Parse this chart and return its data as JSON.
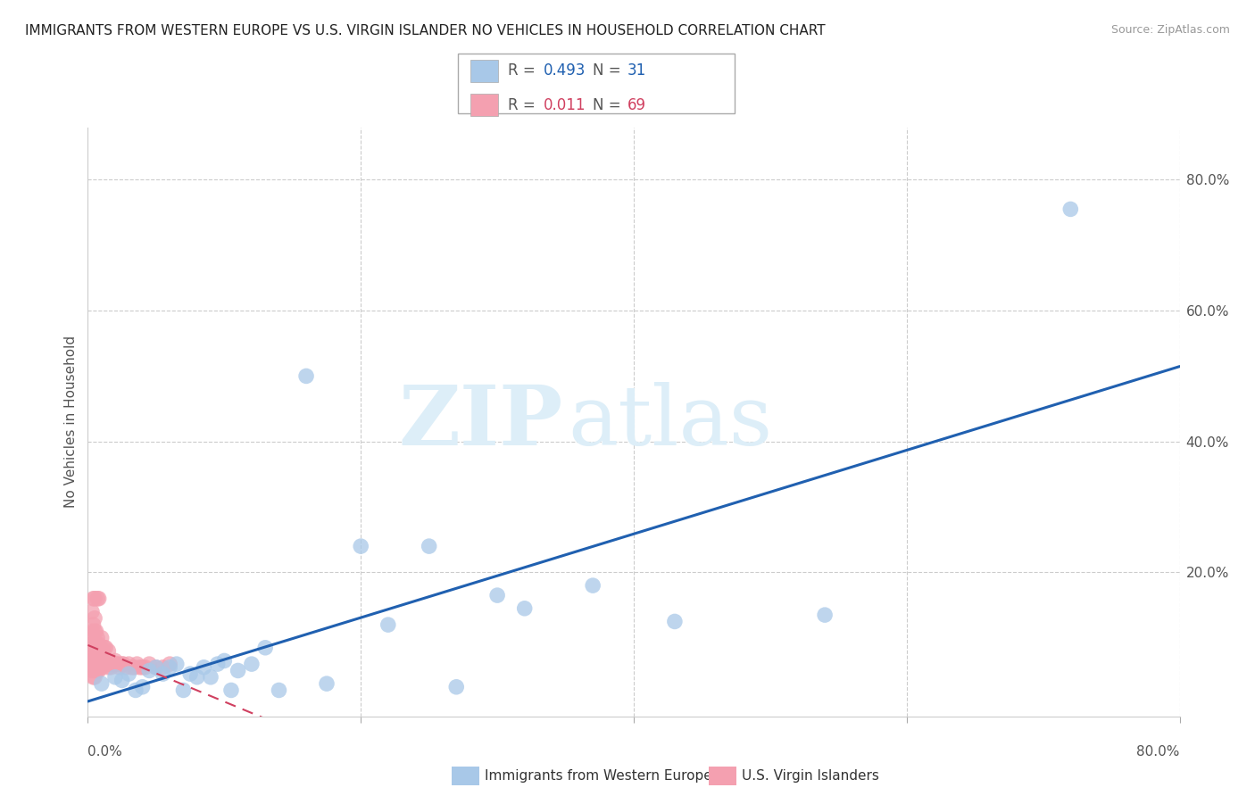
{
  "title": "IMMIGRANTS FROM WESTERN EUROPE VS U.S. VIRGIN ISLANDER NO VEHICLES IN HOUSEHOLD CORRELATION CHART",
  "source": "Source: ZipAtlas.com",
  "ylabel": "No Vehicles in Household",
  "ytick_values": [
    0.0,
    0.2,
    0.4,
    0.6,
    0.8
  ],
  "xlim": [
    0.0,
    0.8
  ],
  "ylim": [
    -0.02,
    0.88
  ],
  "color_blue": "#A8C8E8",
  "color_pink": "#F4A0B0",
  "trendline_blue": "#2060B0",
  "trendline_pink": "#D04060",
  "watermark_zip": "ZIP",
  "watermark_atlas": "atlas",
  "blue_scatter_x": [
    0.01,
    0.02,
    0.025,
    0.03,
    0.035,
    0.04,
    0.045,
    0.05,
    0.055,
    0.06,
    0.065,
    0.07,
    0.075,
    0.08,
    0.085,
    0.09,
    0.095,
    0.1,
    0.105,
    0.11,
    0.12,
    0.13,
    0.14,
    0.16,
    0.175,
    0.2,
    0.22,
    0.25,
    0.27,
    0.3,
    0.32,
    0.37,
    0.43,
    0.54,
    0.72
  ],
  "blue_scatter_y": [
    0.03,
    0.04,
    0.035,
    0.045,
    0.02,
    0.025,
    0.05,
    0.055,
    0.045,
    0.055,
    0.06,
    0.02,
    0.045,
    0.04,
    0.055,
    0.04,
    0.06,
    0.065,
    0.02,
    0.05,
    0.06,
    0.085,
    0.02,
    0.5,
    0.03,
    0.24,
    0.12,
    0.24,
    0.025,
    0.165,
    0.145,
    0.18,
    0.125,
    0.135,
    0.755
  ],
  "pink_scatter_x": [
    0.002,
    0.002,
    0.003,
    0.003,
    0.003,
    0.003,
    0.003,
    0.004,
    0.004,
    0.004,
    0.004,
    0.004,
    0.004,
    0.005,
    0.005,
    0.005,
    0.005,
    0.005,
    0.005,
    0.005,
    0.006,
    0.006,
    0.006,
    0.006,
    0.007,
    0.007,
    0.007,
    0.007,
    0.007,
    0.008,
    0.008,
    0.008,
    0.008,
    0.009,
    0.009,
    0.01,
    0.01,
    0.01,
    0.011,
    0.011,
    0.012,
    0.012,
    0.013,
    0.013,
    0.014,
    0.015,
    0.015,
    0.016,
    0.017,
    0.018,
    0.019,
    0.02,
    0.021,
    0.022,
    0.023,
    0.025,
    0.026,
    0.028,
    0.03,
    0.032,
    0.034,
    0.036,
    0.038,
    0.04,
    0.042,
    0.045,
    0.05,
    0.055,
    0.06
  ],
  "pink_scatter_y": [
    0.06,
    0.09,
    0.05,
    0.07,
    0.09,
    0.11,
    0.14,
    0.04,
    0.06,
    0.08,
    0.1,
    0.12,
    0.16,
    0.04,
    0.055,
    0.075,
    0.09,
    0.11,
    0.13,
    0.16,
    0.05,
    0.07,
    0.09,
    0.11,
    0.05,
    0.065,
    0.08,
    0.1,
    0.16,
    0.05,
    0.07,
    0.09,
    0.16,
    0.06,
    0.08,
    0.055,
    0.075,
    0.1,
    0.06,
    0.08,
    0.06,
    0.085,
    0.06,
    0.085,
    0.06,
    0.055,
    0.08,
    0.06,
    0.055,
    0.06,
    0.06,
    0.065,
    0.06,
    0.06,
    0.055,
    0.06,
    0.06,
    0.055,
    0.06,
    0.055,
    0.055,
    0.06,
    0.055,
    0.055,
    0.055,
    0.06,
    0.055,
    0.055,
    0.06
  ],
  "grid_color": "#CCCCCC",
  "bg_color": "#FFFFFF"
}
